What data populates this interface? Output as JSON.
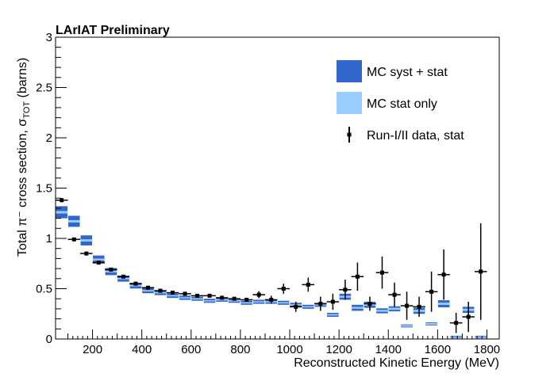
{
  "chart_data": {
    "type": "scatter",
    "title": "LArIAT Preliminary",
    "xlabel": "Reconstructed Kinetic Energy (MeV)",
    "ylabel": "Total π⁻ cross section, σ",
    "ylabel_sub": "TOT",
    "ylabel_unit": " (barns)",
    "xlim": [
      50,
      1850
    ],
    "ylim": [
      0,
      3
    ],
    "x_ticks": [
      200,
      400,
      600,
      800,
      1000,
      1200,
      1400,
      1600,
      1800
    ],
    "x_tick_labels": [
      "200",
      "400",
      "600",
      "800",
      "1000",
      "1200",
      "1400",
      "1600",
      "1800"
    ],
    "y_ticks": [
      0,
      0.5,
      1,
      1.5,
      2,
      2.5,
      3
    ],
    "y_tick_labels": [
      "0",
      "0.5",
      "1",
      "1.5",
      "2",
      "2.5",
      "3"
    ],
    "grid": false,
    "legend_position": "top-right",
    "legend": [
      {
        "label": "MC syst + stat",
        "style": "box",
        "color": "#3366cc"
      },
      {
        "label": "MC stat only",
        "style": "box",
        "color": "#99ccff"
      },
      {
        "label": "Run-I/II data, stat",
        "style": "marker",
        "color": "#000000"
      }
    ],
    "mc": {
      "bin_width": 50,
      "x": [
        75,
        125,
        175,
        225,
        275,
        325,
        375,
        425,
        475,
        525,
        575,
        625,
        675,
        725,
        775,
        825,
        875,
        925,
        975,
        1025,
        1075,
        1125,
        1175,
        1225,
        1275,
        1325,
        1375,
        1425,
        1475,
        1525,
        1575,
        1625,
        1675,
        1725,
        1775
      ],
      "center": [
        1.26,
        1.17,
        0.98,
        0.79,
        0.67,
        0.6,
        0.53,
        0.48,
        0.46,
        0.43,
        0.41,
        0.4,
        0.38,
        0.39,
        0.38,
        0.36,
        0.37,
        0.37,
        0.36,
        0.34,
        0.32,
        0.34,
        0.24,
        0.42,
        0.31,
        0.34,
        0.28,
        0.3,
        0.13,
        0.28,
        0.15,
        0.35,
        0.02,
        0.29,
        0.02
      ],
      "syst_half": [
        0.06,
        0.055,
        0.05,
        0.04,
        0.035,
        0.03,
        0.028,
        0.025,
        0.024,
        0.022,
        0.021,
        0.02,
        0.02,
        0.02,
        0.02,
        0.02,
        0.02,
        0.02,
        0.02,
        0.02,
        0.02,
        0.02,
        0.02,
        0.03,
        0.03,
        0.03,
        0.025,
        0.025,
        0.015,
        0.03,
        0.015,
        0.035,
        0.01,
        0.03,
        0.01
      ],
      "stat_half": [
        0.012,
        0.012,
        0.011,
        0.009,
        0.008,
        0.007,
        0.007,
        0.006,
        0.006,
        0.006,
        0.005,
        0.005,
        0.005,
        0.005,
        0.005,
        0.005,
        0.005,
        0.006,
        0.006,
        0.006,
        0.006,
        0.007,
        0.007,
        0.009,
        0.009,
        0.01,
        0.009,
        0.01,
        0.008,
        0.01,
        0.008,
        0.011,
        0.005,
        0.011,
        0.005
      ]
    },
    "data": {
      "x": [
        75,
        125,
        175,
        225,
        275,
        325,
        375,
        425,
        475,
        525,
        575,
        625,
        675,
        725,
        775,
        825,
        875,
        925,
        975,
        1025,
        1075,
        1125,
        1175,
        1225,
        1275,
        1325,
        1375,
        1425,
        1475,
        1525,
        1575,
        1625,
        1675,
        1725,
        1775
      ],
      "x_err": 25,
      "y": [
        1.38,
        0.99,
        0.85,
        0.76,
        0.69,
        0.62,
        0.55,
        0.51,
        0.48,
        0.46,
        0.45,
        0.43,
        0.43,
        0.41,
        0.4,
        0.39,
        0.44,
        0.39,
        0.5,
        0.32,
        0.54,
        0.35,
        0.37,
        0.49,
        0.62,
        0.35,
        0.66,
        0.44,
        0.33,
        0.32,
        0.47,
        0.64,
        0.16,
        0.22,
        0.67
      ],
      "y_err": [
        0.02,
        0.015,
        0.015,
        0.015,
        0.015,
        0.015,
        0.015,
        0.015,
        0.015,
        0.015,
        0.015,
        0.015,
        0.015,
        0.015,
        0.015,
        0.02,
        0.035,
        0.04,
        0.05,
        0.05,
        0.07,
        0.07,
        0.08,
        0.1,
        0.14,
        0.07,
        0.16,
        0.12,
        0.14,
        0.1,
        0.2,
        0.25,
        0.1,
        0.15,
        0.48
      ]
    }
  }
}
